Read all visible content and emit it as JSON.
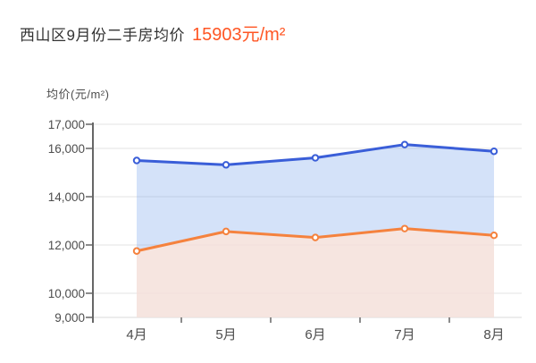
{
  "header": {
    "title": "西山区9月份二手房均价",
    "price": "15903元/m²",
    "price_color": "#ff5523"
  },
  "y_axis_title": "均价(元/m²)",
  "chart_data": {
    "type": "area",
    "title": "西山区9月份二手房均价 15903元/m²",
    "xlabel": "",
    "ylabel": "均价(元/m²)",
    "categories": [
      "4月",
      "5月",
      "6月",
      "7月",
      "8月"
    ],
    "series": [
      {
        "name": "blue-series",
        "color": "#3a5ed8",
        "fill": "rgba(112,158,235,0.30)",
        "values": [
          15500,
          15320,
          15610,
          16160,
          15880
        ]
      },
      {
        "name": "orange-series",
        "color": "#f5823e",
        "fill": "rgba(255,229,216,0.78)",
        "values": [
          11750,
          12560,
          12310,
          12680,
          12400
        ]
      }
    ],
    "ylim": [
      9000,
      17000
    ],
    "yticks": [
      17000,
      16000,
      14000,
      12000,
      10000,
      9000
    ],
    "ytick_labels": [
      "17,000",
      "16,000",
      "14,000",
      "12,000",
      "10,000",
      "9,000"
    ],
    "grid": true,
    "legend": "none",
    "marker": "open-circle"
  },
  "colors": {
    "grid": "#e3e3e3",
    "baseline": "#d9d9d9",
    "axis": "#666666",
    "tick_label": "#4d4d4d",
    "title_text": "#333333"
  }
}
